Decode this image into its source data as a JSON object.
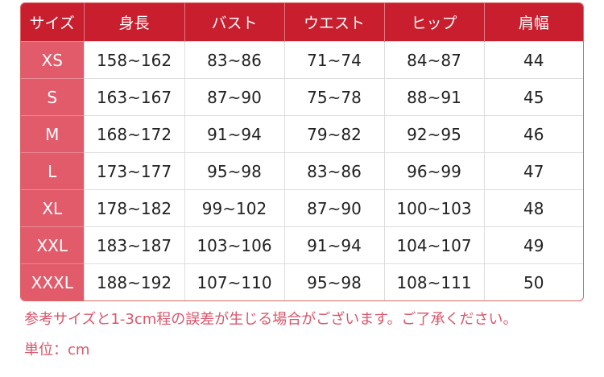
{
  "colors": {
    "header": "#c81e2e",
    "size_column": "#e15b6b",
    "note": "#d9566c"
  },
  "table": {
    "headers": [
      "サイズ",
      "身長",
      "バスト",
      "ウエスト",
      "ヒップ",
      "肩幅"
    ],
    "rows": [
      [
        "XS",
        "158~162",
        "83~86",
        "71~74",
        "84~87",
        "44"
      ],
      [
        "S",
        "163~167",
        "87~90",
        "75~78",
        "88~91",
        "45"
      ],
      [
        "M",
        "168~172",
        "91~94",
        "79~82",
        "92~95",
        "46"
      ],
      [
        "L",
        "173~177",
        "95~98",
        "83~86",
        "96~99",
        "47"
      ],
      [
        "XL",
        "178~182",
        "99~102",
        "87~90",
        "100~103",
        "48"
      ],
      [
        "XXL",
        "183~187",
        "103~106",
        "91~94",
        "104~107",
        "49"
      ],
      [
        "XXXL",
        "188~192",
        "107~110",
        "95~98",
        "108~111",
        "50"
      ]
    ]
  },
  "notes": {
    "disclaimer": "参考サイズと1-3cm程の誤差が生じる場合がございます。ご了承ください。",
    "unit": "単位：cm"
  }
}
